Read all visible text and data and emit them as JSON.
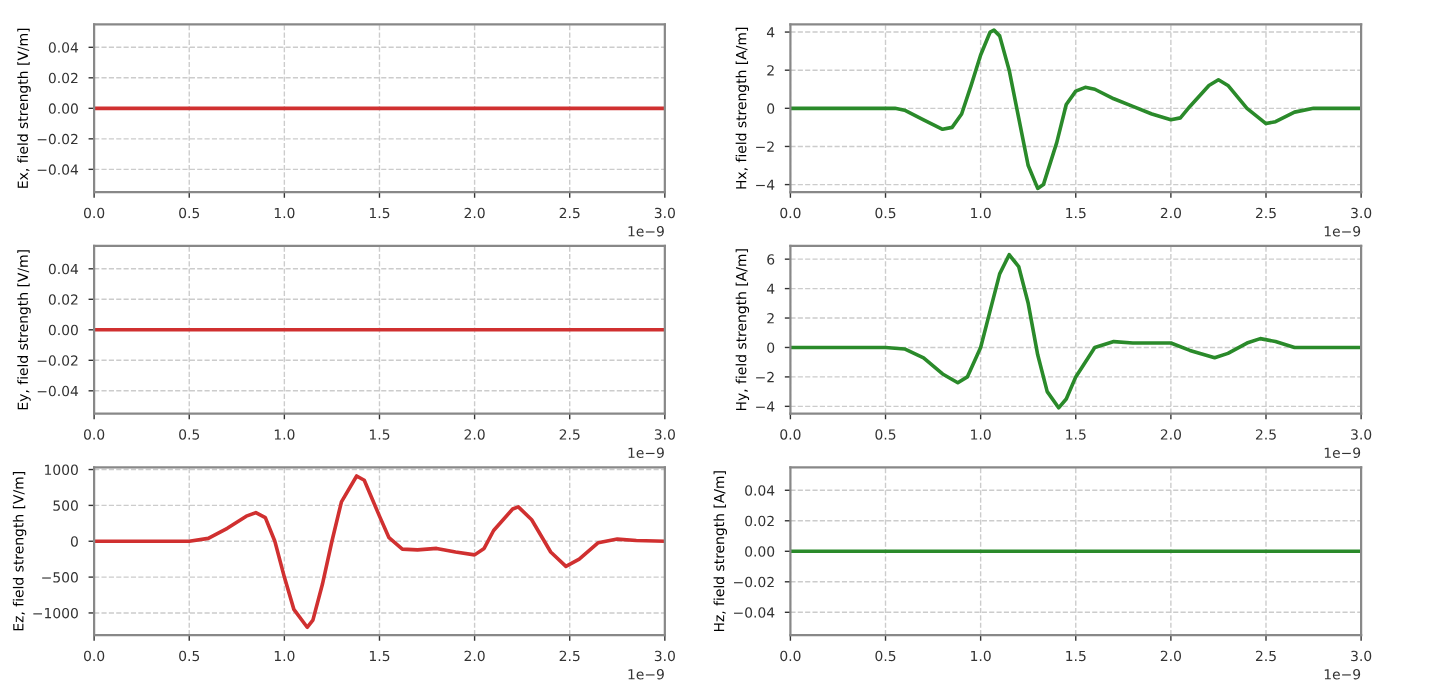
{
  "chart_data": [
    {
      "type": "line",
      "ylabel": "Ex, field strength [V/m]",
      "x": [
        0.0,
        3.0
      ],
      "series": [
        {
          "color": "#d03030",
          "values": [
            0,
            0
          ]
        }
      ],
      "xlim": [
        0.0,
        3.0
      ],
      "xticks": [
        {
          "value": 0,
          "label": "0.0"
        },
        {
          "value": 0.5,
          "label": "0.5"
        },
        {
          "value": 1,
          "label": "1.0"
        },
        {
          "value": 1.5,
          "label": "1.5"
        },
        {
          "value": 2,
          "label": "2.0"
        },
        {
          "value": 2.5,
          "label": "2.5"
        },
        {
          "value": 3,
          "label": "3.0"
        }
      ],
      "ylim": [
        -0.055,
        0.055
      ],
      "yticks": [
        {
          "value": -0.04,
          "label": "−0.04"
        },
        {
          "value": -0.02,
          "label": "−0.02"
        },
        {
          "value": 0.0,
          "label": "0.00"
        },
        {
          "value": 0.02,
          "label": "0.02"
        },
        {
          "value": 0.04,
          "label": "0.04"
        }
      ],
      "grid": true,
      "annotations": [
        "1e−9"
      ]
    },
    {
      "type": "line",
      "ylabel": "Hx, field strength [A/m]",
      "x": [
        0,
        0.5,
        0.55,
        0.6,
        0.7,
        0.8,
        0.85,
        0.9,
        0.95,
        1.0,
        1.05,
        1.07,
        1.1,
        1.15,
        1.2,
        1.25,
        1.3,
        1.33,
        1.4,
        1.45,
        1.5,
        1.55,
        1.6,
        1.7,
        1.8,
        1.9,
        2.0,
        2.05,
        2.1,
        2.2,
        2.25,
        2.3,
        2.4,
        2.5,
        2.55,
        2.65,
        2.75,
        3.0
      ],
      "series": [
        {
          "color": "#2a8a2a",
          "values": [
            0,
            0,
            0,
            -0.1,
            -0.6,
            -1.1,
            -1.0,
            -0.3,
            1.2,
            2.8,
            4.0,
            4.1,
            3.8,
            2.0,
            -0.5,
            -3.0,
            -4.2,
            -4.0,
            -1.8,
            0.2,
            0.9,
            1.1,
            1.0,
            0.5,
            0.1,
            -0.3,
            -0.6,
            -0.5,
            0.1,
            1.2,
            1.5,
            1.2,
            0.0,
            -0.8,
            -0.7,
            -0.2,
            0.0,
            0
          ]
        }
      ],
      "xlim": [
        0.0,
        3.0
      ],
      "xticks": [
        {
          "value": 0,
          "label": "0.0"
        },
        {
          "value": 0.5,
          "label": "0.5"
        },
        {
          "value": 1,
          "label": "1.0"
        },
        {
          "value": 1.5,
          "label": "1.5"
        },
        {
          "value": 2,
          "label": "2.0"
        },
        {
          "value": 2.5,
          "label": "2.5"
        },
        {
          "value": 3,
          "label": "3.0"
        }
      ],
      "ylim": [
        -4.4,
        4.4
      ],
      "yticks": [
        {
          "value": -4,
          "label": "−4"
        },
        {
          "value": -2,
          "label": "−2"
        },
        {
          "value": 0,
          "label": "0"
        },
        {
          "value": 2,
          "label": "2"
        },
        {
          "value": 4,
          "label": "4"
        }
      ],
      "grid": true,
      "annotations": [
        "1e−9"
      ]
    },
    {
      "type": "line",
      "ylabel": "Ey, field strength [V/m]",
      "x": [
        0.0,
        3.0
      ],
      "series": [
        {
          "color": "#d03030",
          "values": [
            0,
            0
          ]
        }
      ],
      "xlim": [
        0.0,
        3.0
      ],
      "xticks": [
        {
          "value": 0,
          "label": "0.0"
        },
        {
          "value": 0.5,
          "label": "0.5"
        },
        {
          "value": 1,
          "label": "1.0"
        },
        {
          "value": 1.5,
          "label": "1.5"
        },
        {
          "value": 2,
          "label": "2.0"
        },
        {
          "value": 2.5,
          "label": "2.5"
        },
        {
          "value": 3,
          "label": "3.0"
        }
      ],
      "ylim": [
        -0.055,
        0.055
      ],
      "yticks": [
        {
          "value": -0.04,
          "label": "−0.04"
        },
        {
          "value": -0.02,
          "label": "−0.02"
        },
        {
          "value": 0.0,
          "label": "0.00"
        },
        {
          "value": 0.02,
          "label": "0.02"
        },
        {
          "value": 0.04,
          "label": "0.04"
        }
      ],
      "grid": true,
      "annotations": [
        "1e−9"
      ]
    },
    {
      "type": "line",
      "ylabel": "Hy, field strength [A/m]",
      "x": [
        0,
        0.5,
        0.6,
        0.7,
        0.8,
        0.88,
        0.93,
        1.0,
        1.05,
        1.1,
        1.15,
        1.2,
        1.25,
        1.3,
        1.35,
        1.41,
        1.45,
        1.5,
        1.6,
        1.7,
        1.8,
        1.9,
        2.0,
        2.1,
        2.23,
        2.3,
        2.4,
        2.47,
        2.55,
        2.65,
        2.75,
        3.0
      ],
      "series": [
        {
          "color": "#2a8a2a",
          "values": [
            0,
            0,
            -0.1,
            -0.7,
            -1.8,
            -2.4,
            -2.0,
            0.0,
            2.5,
            5.0,
            6.3,
            5.5,
            3.0,
            -0.5,
            -3.0,
            -4.1,
            -3.5,
            -2.0,
            0.0,
            0.4,
            0.3,
            0.3,
            0.3,
            -0.2,
            -0.7,
            -0.4,
            0.3,
            0.6,
            0.4,
            0.0,
            0.0,
            0
          ]
        }
      ],
      "xlim": [
        0.0,
        3.0
      ],
      "xticks": [
        {
          "value": 0,
          "label": "0.0"
        },
        {
          "value": 0.5,
          "label": "0.5"
        },
        {
          "value": 1,
          "label": "1.0"
        },
        {
          "value": 1.5,
          "label": "1.5"
        },
        {
          "value": 2,
          "label": "2.0"
        },
        {
          "value": 2.5,
          "label": "2.5"
        },
        {
          "value": 3,
          "label": "3.0"
        }
      ],
      "ylim": [
        -4.5,
        6.9
      ],
      "yticks": [
        {
          "value": -4,
          "label": "−4"
        },
        {
          "value": -2,
          "label": "−2"
        },
        {
          "value": 0,
          "label": "0"
        },
        {
          "value": 2,
          "label": "2"
        },
        {
          "value": 4,
          "label": "4"
        },
        {
          "value": 6,
          "label": "6"
        }
      ],
      "grid": true,
      "annotations": [
        "1e−9"
      ]
    },
    {
      "type": "line",
      "ylabel": "Ez, field strength [V/m]",
      "x": [
        0,
        0.5,
        0.6,
        0.7,
        0.8,
        0.85,
        0.9,
        0.95,
        1.0,
        1.05,
        1.12,
        1.15,
        1.2,
        1.25,
        1.3,
        1.38,
        1.42,
        1.5,
        1.55,
        1.62,
        1.7,
        1.8,
        1.9,
        2.0,
        2.05,
        2.1,
        2.2,
        2.23,
        2.3,
        2.4,
        2.48,
        2.55,
        2.65,
        2.75,
        2.85,
        3.0
      ],
      "series": [
        {
          "color": "#d03030",
          "values": [
            0,
            0,
            40,
            180,
            350,
            400,
            330,
            0,
            -500,
            -950,
            -1200,
            -1100,
            -600,
            0,
            550,
            910,
            850,
            350,
            50,
            -110,
            -120,
            -100,
            -150,
            -190,
            -100,
            150,
            450,
            480,
            300,
            -150,
            -350,
            -250,
            -20,
            30,
            10,
            0
          ]
        }
      ],
      "xlim": [
        0.0,
        3.0
      ],
      "xticks": [
        {
          "value": 0,
          "label": "0.0"
        },
        {
          "value": 0.5,
          "label": "0.5"
        },
        {
          "value": 1,
          "label": "1.0"
        },
        {
          "value": 1.5,
          "label": "1.5"
        },
        {
          "value": 2,
          "label": "2.0"
        },
        {
          "value": 2.5,
          "label": "2.5"
        },
        {
          "value": 3,
          "label": "3.0"
        }
      ],
      "ylim": [
        -1310,
        1030
      ],
      "yticks": [
        {
          "value": -1000,
          "label": "−1000"
        },
        {
          "value": -500,
          "label": "−500"
        },
        {
          "value": 0,
          "label": "0"
        },
        {
          "value": 500,
          "label": "500"
        },
        {
          "value": 1000,
          "label": "1000"
        }
      ],
      "grid": true,
      "annotations": [
        "1e−9"
      ]
    },
    {
      "type": "line",
      "ylabel": "Hz, field strength [A/m]",
      "x": [
        0.0,
        3.0
      ],
      "series": [
        {
          "color": "#2a8a2a",
          "values": [
            0,
            0
          ]
        }
      ],
      "xlim": [
        0.0,
        3.0
      ],
      "xticks": [
        {
          "value": 0,
          "label": "0.0"
        },
        {
          "value": 0.5,
          "label": "0.5"
        },
        {
          "value": 1,
          "label": "1.0"
        },
        {
          "value": 1.5,
          "label": "1.5"
        },
        {
          "value": 2,
          "label": "2.0"
        },
        {
          "value": 2.5,
          "label": "2.5"
        },
        {
          "value": 3,
          "label": "3.0"
        }
      ],
      "ylim": [
        -0.055,
        0.055
      ],
      "yticks": [
        {
          "value": -0.04,
          "label": "−0.04"
        },
        {
          "value": -0.02,
          "label": "−0.02"
        },
        {
          "value": 0.0,
          "label": "0.00"
        },
        {
          "value": 0.02,
          "label": "0.02"
        },
        {
          "value": 0.04,
          "label": "0.04"
        }
      ],
      "grid": true,
      "annotations": [
        "1e−9"
      ]
    }
  ]
}
